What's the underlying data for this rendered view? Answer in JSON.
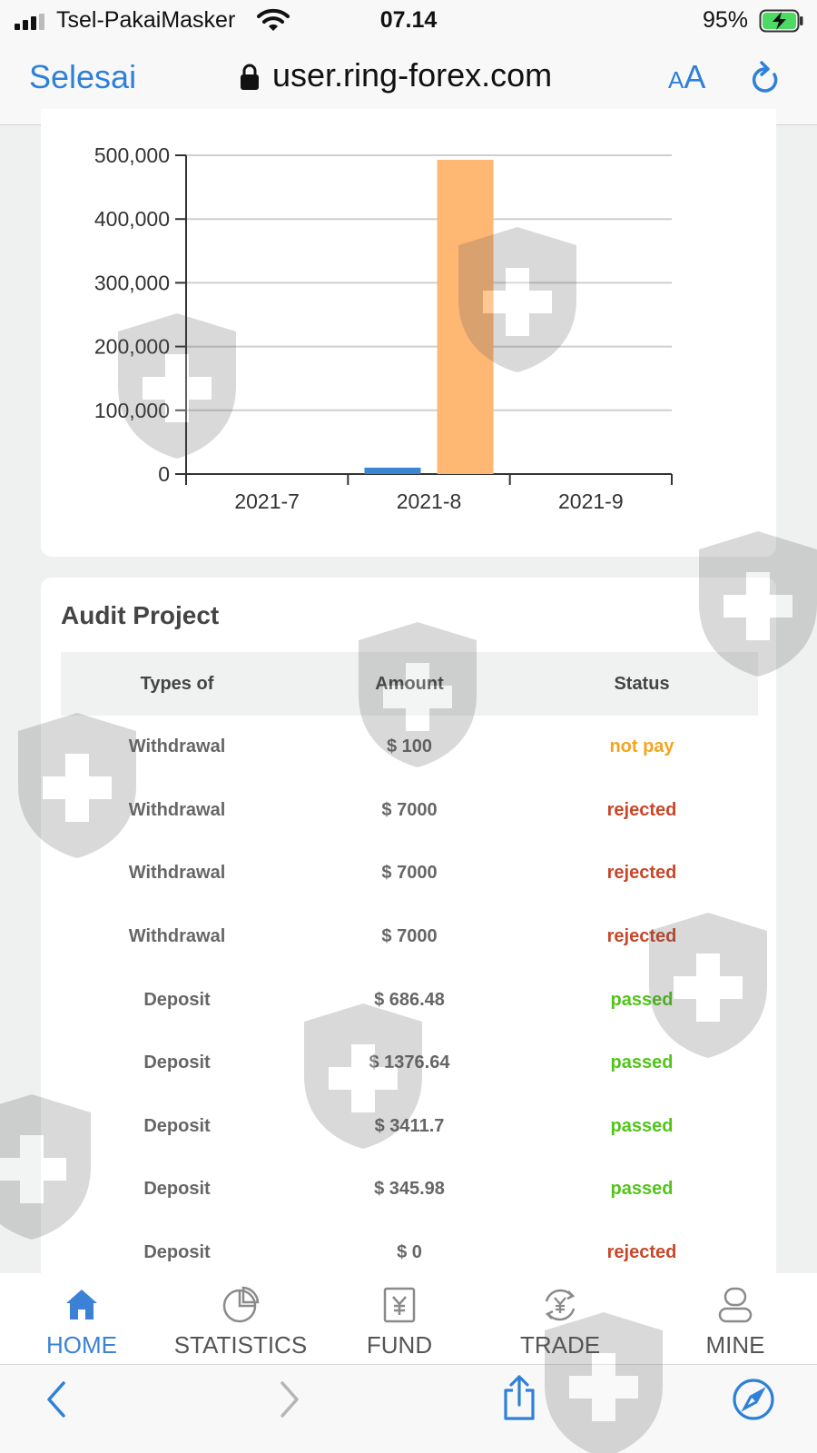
{
  "status_bar": {
    "carrier": "Tsel-PakaiMasker",
    "time": "07.14",
    "battery": "95%"
  },
  "browser": {
    "done_label": "Selesai",
    "url": "user.ring-forex.com",
    "text_size_small": "A",
    "text_size_large": "A"
  },
  "chart_data": {
    "type": "bar",
    "categories": [
      "2021-7",
      "2021-8",
      "2021-9"
    ],
    "series": [
      {
        "color": "#3a86d4",
        "values": [
          0,
          10000,
          0
        ]
      },
      {
        "color": "#ffb874",
        "values": [
          0,
          493000,
          0
        ]
      }
    ],
    "ylim": [
      0,
      500000
    ],
    "yticks": [
      "0",
      "100,000",
      "200,000",
      "300,000",
      "400,000",
      "500,000"
    ],
    "grid": true
  },
  "audit": {
    "title": "Audit Project",
    "columns": [
      "Types of",
      "Amount",
      "Status"
    ],
    "rows": [
      {
        "type": "Withdrawal",
        "amount": "$ 100",
        "status": "not pay",
        "color": "#f2a51f"
      },
      {
        "type": "Withdrawal",
        "amount": "$ 7000",
        "status": "rejected",
        "color": "#c8472a"
      },
      {
        "type": "Withdrawal",
        "amount": "$ 7000",
        "status": "rejected",
        "color": "#c8472a"
      },
      {
        "type": "Withdrawal",
        "amount": "$ 7000",
        "status": "rejected",
        "color": "#c8472a"
      },
      {
        "type": "Deposit",
        "amount": "$ 686.48",
        "status": "passed",
        "color": "#52c41a"
      },
      {
        "type": "Deposit",
        "amount": "$ 1376.64",
        "status": "passed",
        "color": "#52c41a"
      },
      {
        "type": "Deposit",
        "amount": "$ 3411.7",
        "status": "passed",
        "color": "#52c41a"
      },
      {
        "type": "Deposit",
        "amount": "$ 345.98",
        "status": "passed",
        "color": "#52c41a"
      },
      {
        "type": "Deposit",
        "amount": "$ 0",
        "status": "rejected",
        "color": "#c8472a"
      }
    ]
  },
  "tabbar": {
    "items": [
      {
        "label": "HOME",
        "icon": "home-icon",
        "active": true
      },
      {
        "label": "STATISTICS",
        "icon": "pie-chart-icon",
        "active": false
      },
      {
        "label": "FUND",
        "icon": "yen-document-icon",
        "active": false
      },
      {
        "label": "TRADE",
        "icon": "yen-exchange-icon",
        "active": false
      },
      {
        "label": "MINE",
        "icon": "user-icon",
        "active": false
      }
    ]
  },
  "colors": {
    "accent": "#2f80d8",
    "tab_active": "#3b82d6"
  }
}
